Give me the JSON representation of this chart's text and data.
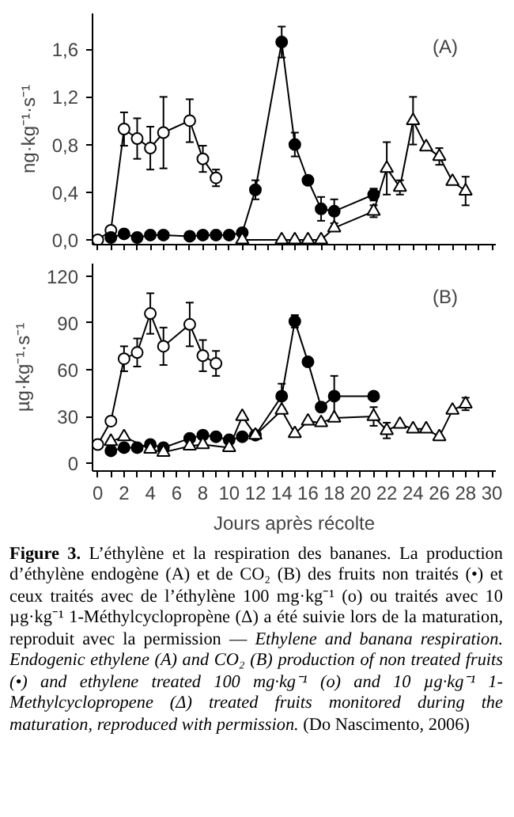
{
  "chart_data": [
    {
      "type": "line",
      "ylabel": "ng·kg⁻¹·s⁻¹",
      "annotations": [
        "(A)"
      ],
      "tick_labels": "y",
      "grid": false,
      "line_style": "solid",
      "xlim": [
        -0.4,
        30.3
      ],
      "ylim": [
        -0.04,
        1.9
      ],
      "xticks": [
        {
          "value": 0,
          "label": null
        },
        {
          "value": 1,
          "label": null
        },
        {
          "value": 2,
          "label": null
        },
        {
          "value": 3,
          "label": null
        },
        {
          "value": 4,
          "label": null
        },
        {
          "value": 5,
          "label": null
        },
        {
          "value": 6,
          "label": null
        },
        {
          "value": 7,
          "label": null
        },
        {
          "value": 8,
          "label": null
        },
        {
          "value": 9,
          "label": null
        },
        {
          "value": 10,
          "label": null
        },
        {
          "value": 11,
          "label": null
        },
        {
          "value": 12,
          "label": null
        },
        {
          "value": 13,
          "label": null
        },
        {
          "value": 14,
          "label": null
        },
        {
          "value": 15,
          "label": null
        },
        {
          "value": 16,
          "label": null
        },
        {
          "value": 17,
          "label": null
        },
        {
          "value": 18,
          "label": null
        },
        {
          "value": 19,
          "label": null
        },
        {
          "value": 20,
          "label": null
        },
        {
          "value": 21,
          "label": null
        },
        {
          "value": 22,
          "label": null
        },
        {
          "value": 23,
          "label": null
        },
        {
          "value": 24,
          "label": null
        },
        {
          "value": 25,
          "label": null
        },
        {
          "value": 26,
          "label": null
        },
        {
          "value": 27,
          "label": null
        },
        {
          "value": 28,
          "label": null
        },
        {
          "value": 29,
          "label": null
        },
        {
          "value": 30,
          "label": null
        }
      ],
      "yticks": [
        {
          "value": 0,
          "label": "0,0"
        },
        {
          "value": 0.4,
          "label": "0,4"
        },
        {
          "value": 0.8,
          "label": "0,8"
        },
        {
          "value": 1.2,
          "label": "1,2"
        },
        {
          "value": 1.6,
          "label": "1,6"
        }
      ],
      "series": [
        {
          "color": "#ffffff",
          "marker": "circle",
          "x": [
            0,
            1,
            2,
            3,
            4,
            5,
            7,
            8,
            9
          ],
          "values": [
            0.0,
            0.08,
            0.93,
            0.85,
            0.77,
            0.9,
            1.0,
            0.68,
            0.52
          ],
          "errors": [
            null,
            null,
            0.14,
            0.17,
            0.18,
            0.3,
            0.18,
            0.11,
            0.07
          ]
        },
        {
          "color": "#000000",
          "marker": "circle",
          "x": [
            1,
            2,
            3,
            4,
            5,
            7,
            8,
            9,
            10,
            11,
            12,
            14,
            15,
            16,
            17,
            18,
            21
          ],
          "values": [
            0.02,
            0.05,
            0.02,
            0.04,
            0.04,
            0.03,
            0.04,
            0.04,
            0.04,
            0.06,
            0.42,
            1.66,
            0.8,
            0.5,
            0.26,
            0.24,
            0.38
          ],
          "errors": [
            null,
            null,
            null,
            null,
            null,
            null,
            null,
            null,
            null,
            null,
            0.08,
            0.13,
            0.1,
            null,
            0.1,
            0.1,
            0.05
          ]
        },
        {
          "color": "#ffffff",
          "marker": "triangle",
          "x": [
            11,
            14,
            15,
            16,
            17,
            18,
            21,
            22,
            23,
            24,
            25,
            26,
            27,
            28
          ],
          "values": [
            0.0,
            0.0,
            0.0,
            0.0,
            0.0,
            0.1,
            0.24,
            0.6,
            0.44,
            1.0,
            0.78,
            0.7,
            0.49,
            0.41
          ],
          "errors": [
            null,
            null,
            null,
            null,
            null,
            null,
            0.05,
            0.22,
            0.06,
            0.2,
            null,
            0.07,
            null,
            0.12
          ]
        }
      ]
    },
    {
      "type": "line",
      "ylabel": "µg·kg⁻¹·s⁻¹",
      "xlabel": "Jours après récolte",
      "grid": false,
      "line_style": "solid",
      "annotations": [
        "(B)",
        "Figure 3.",
        "L’éthylène et la respiration des bananes. La production d’éthylène endogène (A) et de CO₂ (B) des fruits non traités (•) et ceux traités avec de l’éthylène 100 mg·kg⁻¹ (o) ou traités avec 10 µg·kg⁻¹ 1-Méthylcyclopropène (Δ) a été suivie lors de la maturation, reproduit avec la permission —",
        "Ethylene and banana respiration. Endogenic ethylene (A) and CO₂ (B) production of non treated fruits (•) and ethylene treated 100 mg·kg⁻¹ (o) and 10 µg·kg⁻¹ 1-Methylcyclopropene (Δ) treated fruits monitored during the maturation, reproduced with permission.",
        "(Do Nascimento, 2006)"
      ],
      "xlim": [
        -0.4,
        30.3
      ],
      "ylim": [
        -5,
        128
      ],
      "xticks": [
        0,
        {
          "value": 1,
          "label": null
        },
        2,
        {
          "value": 3,
          "label": null
        },
        4,
        {
          "value": 5,
          "label": null
        },
        6,
        {
          "value": 7,
          "label": null
        },
        8,
        {
          "value": 9,
          "label": null
        },
        10,
        {
          "value": 11,
          "label": null
        },
        12,
        {
          "value": 13,
          "label": null
        },
        14,
        {
          "value": 15,
          "label": null
        },
        16,
        {
          "value": 17,
          "label": null
        },
        18,
        {
          "value": 19,
          "label": null
        },
        20,
        {
          "value": 21,
          "label": null
        },
        22,
        {
          "value": 23,
          "label": null
        },
        24,
        {
          "value": 25,
          "label": null
        },
        26,
        {
          "value": 27,
          "label": null
        },
        28,
        {
          "value": 29,
          "label": null
        },
        30
      ],
      "yticks": [
        0,
        30,
        60,
        90,
        120
      ],
      "series": [
        {
          "color": "#ffffff",
          "marker": "circle",
          "x": [
            0,
            1,
            2,
            3,
            4,
            5,
            7,
            8,
            9
          ],
          "values": [
            12,
            27,
            67,
            71,
            96,
            75,
            89,
            69,
            64
          ],
          "errors": [
            null,
            null,
            8,
            9,
            13,
            12,
            14,
            10,
            8
          ]
        },
        {
          "color": "#000000",
          "marker": "circle",
          "x": [
            1,
            2,
            3,
            4,
            5,
            7,
            8,
            9,
            10,
            11,
            12,
            14,
            15,
            16,
            17,
            18,
            21
          ],
          "values": [
            8,
            10,
            10,
            12,
            10,
            16,
            18,
            17,
            15,
            17,
            18,
            43,
            91,
            65,
            36,
            43,
            43
          ],
          "errors": [
            null,
            null,
            null,
            null,
            null,
            null,
            null,
            null,
            null,
            null,
            null,
            8,
            4,
            null,
            null,
            13,
            null
          ]
        },
        {
          "color": "#ffffff",
          "marker": "triangle",
          "x": [
            1,
            2,
            4,
            5,
            7,
            8,
            10,
            11,
            12,
            14,
            15,
            16,
            17,
            18,
            21,
            22,
            23,
            24,
            25,
            26,
            27,
            28
          ],
          "values": [
            14,
            17,
            9,
            7,
            11,
            12,
            10,
            30,
            18,
            34,
            19,
            27,
            26,
            29,
            30,
            21,
            25,
            22,
            22,
            17,
            34,
            38
          ],
          "errors": [
            null,
            null,
            null,
            null,
            null,
            null,
            null,
            null,
            null,
            null,
            null,
            null,
            null,
            null,
            6,
            5,
            null,
            null,
            null,
            null,
            null,
            4
          ]
        }
      ]
    }
  ]
}
